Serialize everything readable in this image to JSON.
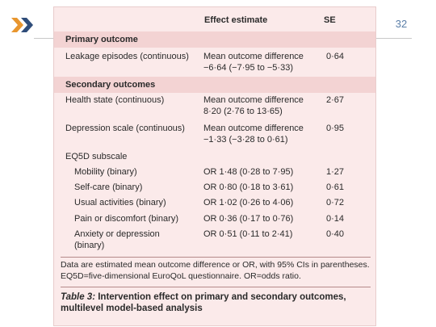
{
  "slide": {
    "page_number": "32",
    "nav_icon": "double-chevron-right-icon",
    "accent_color": "#e8962f"
  },
  "table": {
    "headers": {
      "effect": "Effect estimate",
      "se": "SE"
    },
    "primary_heading": "Primary outcome",
    "secondary_heading": "Secondary outcomes",
    "rows": [
      {
        "label": "Leakage episodes (continuous)",
        "effect_line1": "Mean outcome difference",
        "effect_line2": "−6·64 (−7·95 to −5·33)",
        "se": "0·64"
      },
      {
        "label": "Health state (continuous)",
        "effect_line1": "Mean outcome difference",
        "effect_line2": "8·20 (2·76 to 13·65)",
        "se": "2·67"
      },
      {
        "label": "Depression scale (continuous)",
        "effect_line1": "Mean outcome difference",
        "effect_line2": "−1·33 (−3·28 to 0·61)",
        "se": "0·95"
      }
    ],
    "subscale_heading": "EQ5D subscale",
    "subscale_rows": [
      {
        "label": "Mobility (binary)",
        "effect": "OR 1·48 (0·28 to 7·95)",
        "se": "1·27"
      },
      {
        "label": "Self-care (binary)",
        "effect": "OR 0·80 (0·18 to 3·61)",
        "se": "0·61"
      },
      {
        "label": "Usual activities (binary)",
        "effect": "OR 1·02 (0·26 to 4·06)",
        "se": "0·72"
      },
      {
        "label": "Pain or discomfort (binary)",
        "effect": "OR 0·36 (0·17 to 0·76)",
        "se": "0·14"
      },
      {
        "label_line1": "Anxiety or depression",
        "label_line2": "(binary)",
        "effect": "OR 0·51 (0·11 to 2·41)",
        "se": "0·40"
      }
    ],
    "footnote": "Data are estimated mean outcome difference or OR, with 95% CIs in parentheses. EQ5D=five-dimensional EuroQoL questionnaire. OR=odds ratio.",
    "caption_label": "Table 3:",
    "caption_text": " Intervention effect on primary and secondary outcomes, multilevel model-based analysis"
  }
}
